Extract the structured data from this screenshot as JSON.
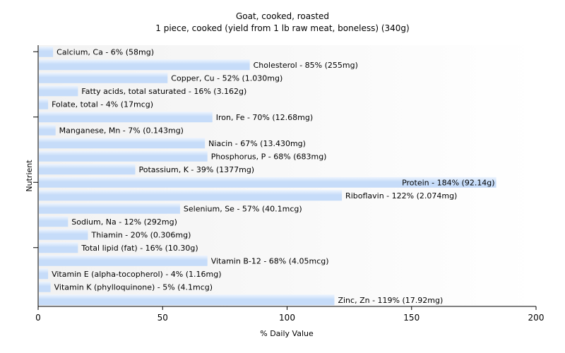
{
  "chart_data": {
    "type": "bar",
    "orientation": "horizontal",
    "title": "Goat, cooked, roasted",
    "subtitle": "1 piece, cooked (yield from 1 lb raw meat, boneless) (340g)",
    "xlabel": "% Daily Value",
    "ylabel": "Nutrient",
    "xlim": [
      0,
      200
    ],
    "x_ticks": [
      0,
      50,
      100,
      150,
      200
    ],
    "grid": false,
    "legend": "none",
    "colors": {
      "bar": "#c6dcf9",
      "bar_gradient_end": "#eef5fe",
      "axis": "#000000",
      "text": "#000000"
    },
    "categories": [
      "Calcium, Ca",
      "Cholesterol",
      "Copper, Cu",
      "Fatty acids, total saturated",
      "Folate, total",
      "Iron, Fe",
      "Manganese, Mn",
      "Niacin",
      "Phosphorus, P",
      "Potassium, K",
      "Protein",
      "Riboflavin",
      "Selenium, Se",
      "Sodium, Na",
      "Thiamin",
      "Total lipid (fat)",
      "Vitamin B-12",
      "Vitamin E (alpha-tocopherol)",
      "Vitamin K (phylloquinone)",
      "Zinc, Zn"
    ],
    "values": [
      6,
      85,
      52,
      16,
      4,
      70,
      7,
      67,
      68,
      39,
      184,
      122,
      57,
      12,
      20,
      16,
      68,
      4,
      5,
      119
    ],
    "labels": [
      "Calcium, Ca - 6% (58mg)",
      "Cholesterol - 85% (255mg)",
      "Copper, Cu - 52% (1.030mg)",
      "Fatty acids, total saturated - 16% (3.162g)",
      "Folate, total - 4% (17mcg)",
      "Iron, Fe - 70% (12.68mg)",
      "Manganese, Mn - 7% (0.143mg)",
      "Niacin - 67% (13.430mg)",
      "Phosphorus, P - 68% (683mg)",
      "Potassium, K - 39% (1377mg)",
      "Protein - 184% (92.14g)",
      "Riboflavin - 122% (2.074mg)",
      "Selenium, Se - 57% (40.1mcg)",
      "Sodium, Na - 12% (292mg)",
      "Thiamin - 20% (0.306mg)",
      "Total lipid (fat) - 16% (10.30g)",
      "Vitamin B-12 - 68% (4.05mcg)",
      "Vitamin E (alpha-tocopherol) - 4% (1.16mg)",
      "Vitamin K (phylloquinone) - 5% (4.1mcg)",
      "Zinc, Zn - 119% (17.92mg)"
    ]
  }
}
